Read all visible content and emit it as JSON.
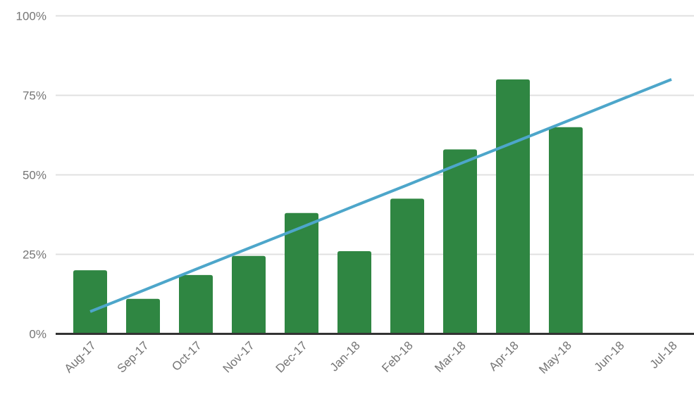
{
  "chart_data": {
    "type": "bar",
    "title": "",
    "xlabel": "",
    "ylabel": "",
    "categories": [
      "Aug-17",
      "Sep-17",
      "Oct-17",
      "Nov-17",
      "Dec-17",
      "Jan-18",
      "Feb-18",
      "Mar-18",
      "Apr-18",
      "May-18",
      "Jun-18",
      "Jul-18"
    ],
    "series": [
      {
        "name": "monthly-percentage-bars",
        "type": "bar",
        "color": "#2F8642",
        "values": [
          20,
          11,
          18.5,
          24.5,
          38,
          26,
          42.5,
          58,
          80,
          65,
          null,
          null
        ]
      },
      {
        "name": "trend-line",
        "type": "line",
        "color": "#4DA6CA",
        "values": [
          7,
          13.6,
          20.3,
          26.9,
          33.5,
          40.2,
          46.8,
          53.5,
          60.1,
          66.7,
          73.4,
          80
        ]
      }
    ],
    "ylim": [
      0,
      100
    ],
    "yticks": [
      0,
      25,
      50,
      75,
      100
    ],
    "ytick_labels": [
      "0%",
      "25%",
      "50%",
      "75%",
      "100%"
    ],
    "grid": true,
    "legend_position": "none",
    "colors": {
      "bar": "#2F8642",
      "line": "#4DA6CA",
      "axis_text": "#757575",
      "gridline": "#E0E0E0",
      "baseline": "#333333",
      "background": "#FFFFFF"
    }
  }
}
